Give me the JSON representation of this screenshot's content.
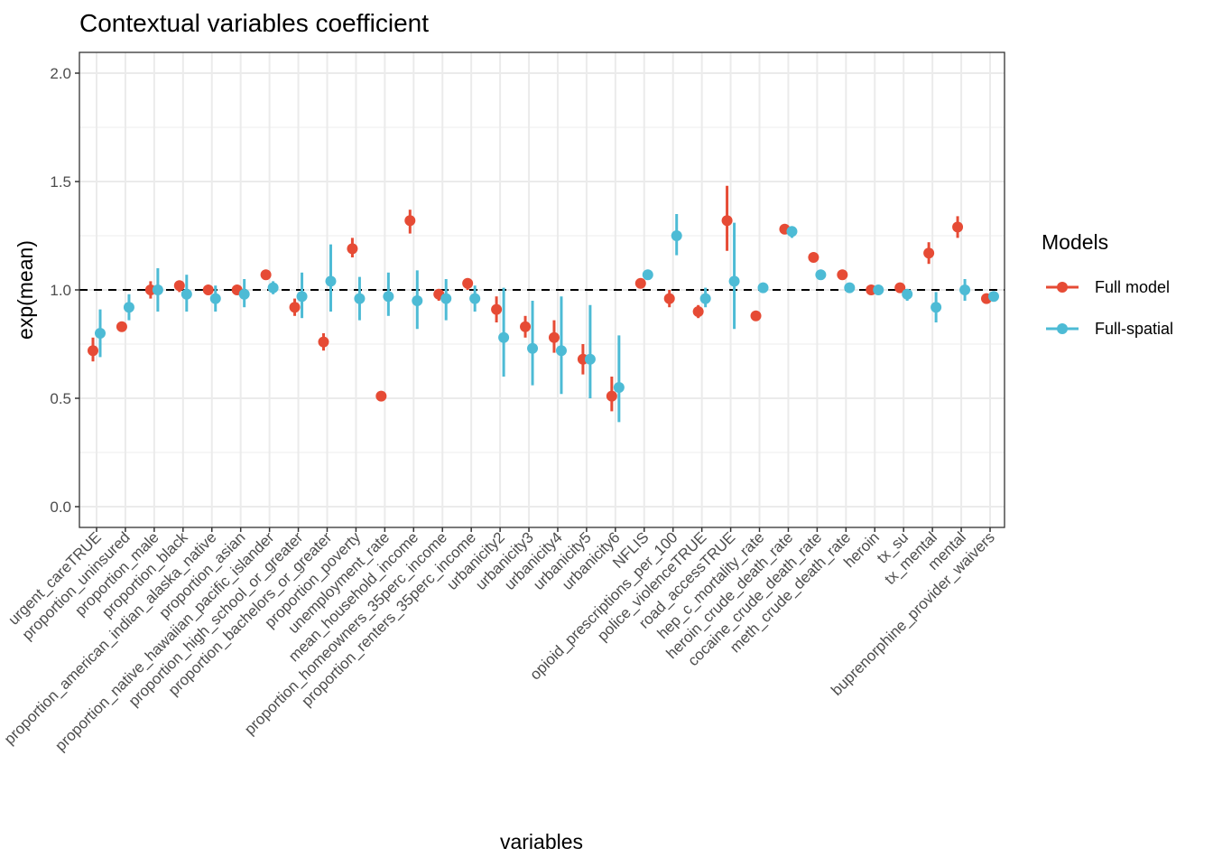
{
  "chart_data": {
    "type": "scatter",
    "subtype": "point-range",
    "title": "Contextual variables coefficient",
    "xlabel": "variables",
    "ylabel": "exp(mean)",
    "ylim": [
      -0.1,
      2.1
    ],
    "yticks": [
      0.0,
      0.5,
      1.0,
      1.5,
      2.0
    ],
    "ytick_labels": [
      "0.0",
      "0.5",
      "1.0",
      "1.5",
      "2.0"
    ],
    "grid": true,
    "reference_line": {
      "y": 1.0,
      "style": "dashed",
      "color": "#000000"
    },
    "legend": {
      "title": "Models",
      "position": "right"
    },
    "categories": [
      "urgent_careTRUE",
      "proportion_uninsured",
      "proportion_male",
      "proportion_black",
      "proportion_american_indian_alaska_native",
      "proportion_asian",
      "proportion_native_hawaiian_pacific_islander",
      "proportion_high_school_or_greater",
      "proportion_bachelors_or_greater",
      "proportion_poverty",
      "unemployment_rate",
      "mean_household_income",
      "proportion_homeowners_35perc_income",
      "proportion_renters_35perc_income",
      "urbanicity2",
      "urbanicity3",
      "urbanicity4",
      "urbanicity5",
      "urbanicity6",
      "NFLIS",
      "opioid_prescriptions_per_100",
      "police_violenceTRUE",
      "road_accessTRUE",
      "hep_c_mortality_rate",
      "heroin_crude_death_rate",
      "cocaine_crude_death_rate",
      "meth_crude_death_rate",
      "heroin",
      "tx_su",
      "tx_mental",
      "mental",
      "buprenorphine_provider_waivers"
    ],
    "series": [
      {
        "name": "Full model",
        "color": "#E64B35",
        "values": [
          0.72,
          0.83,
          1.0,
          1.02,
          1.0,
          1.0,
          1.07,
          0.92,
          0.76,
          1.19,
          0.51,
          1.32,
          0.98,
          1.03,
          0.91,
          0.83,
          0.78,
          0.68,
          0.51,
          1.03,
          0.96,
          0.9,
          1.32,
          0.88,
          1.28,
          1.15,
          1.07,
          1.0,
          1.01,
          1.17,
          1.29,
          0.96
        ],
        "lower": [
          0.67,
          0.81,
          0.96,
          0.99,
          0.98,
          0.99,
          1.05,
          0.88,
          0.72,
          1.15,
          0.5,
          1.26,
          0.95,
          1.0,
          0.85,
          0.78,
          0.71,
          0.61,
          0.44,
          1.02,
          0.92,
          0.87,
          1.18,
          0.87,
          1.27,
          1.14,
          1.06,
          0.99,
          0.99,
          1.12,
          1.24,
          0.95
        ],
        "upper": [
          0.78,
          0.85,
          1.04,
          1.04,
          1.02,
          1.01,
          1.09,
          0.96,
          0.8,
          1.24,
          0.52,
          1.37,
          1.0,
          1.05,
          0.97,
          0.88,
          0.86,
          0.75,
          0.6,
          1.04,
          1.0,
          0.93,
          1.48,
          0.89,
          1.29,
          1.16,
          1.08,
          1.01,
          1.02,
          1.22,
          1.34,
          0.97
        ]
      },
      {
        "name": "Full-spatial",
        "color": "#4DBBD5",
        "values": [
          0.8,
          0.92,
          1.0,
          0.98,
          0.96,
          0.98,
          1.01,
          0.97,
          1.04,
          0.96,
          0.97,
          0.95,
          0.96,
          0.96,
          0.78,
          0.73,
          0.72,
          0.68,
          0.55,
          1.07,
          1.25,
          0.96,
          1.04,
          1.01,
          1.27,
          1.07,
          1.01,
          1.0,
          0.98,
          0.92,
          1.0,
          0.97
        ],
        "lower": [
          0.69,
          0.86,
          0.9,
          0.9,
          0.9,
          0.92,
          0.98,
          0.87,
          0.9,
          0.86,
          0.88,
          0.82,
          0.86,
          0.9,
          0.6,
          0.56,
          0.52,
          0.5,
          0.39,
          1.05,
          1.16,
          0.92,
          0.82,
          0.99,
          1.24,
          1.06,
          1.0,
          0.98,
          0.95,
          0.85,
          0.95,
          0.96
        ],
        "upper": [
          0.91,
          0.98,
          1.1,
          1.07,
          1.02,
          1.05,
          1.04,
          1.08,
          1.21,
          1.06,
          1.08,
          1.09,
          1.05,
          1.02,
          1.01,
          0.95,
          0.97,
          0.93,
          0.79,
          1.09,
          1.35,
          1.01,
          1.31,
          1.03,
          1.29,
          1.08,
          1.03,
          1.01,
          1.0,
          0.99,
          1.05,
          0.98
        ]
      }
    ]
  }
}
